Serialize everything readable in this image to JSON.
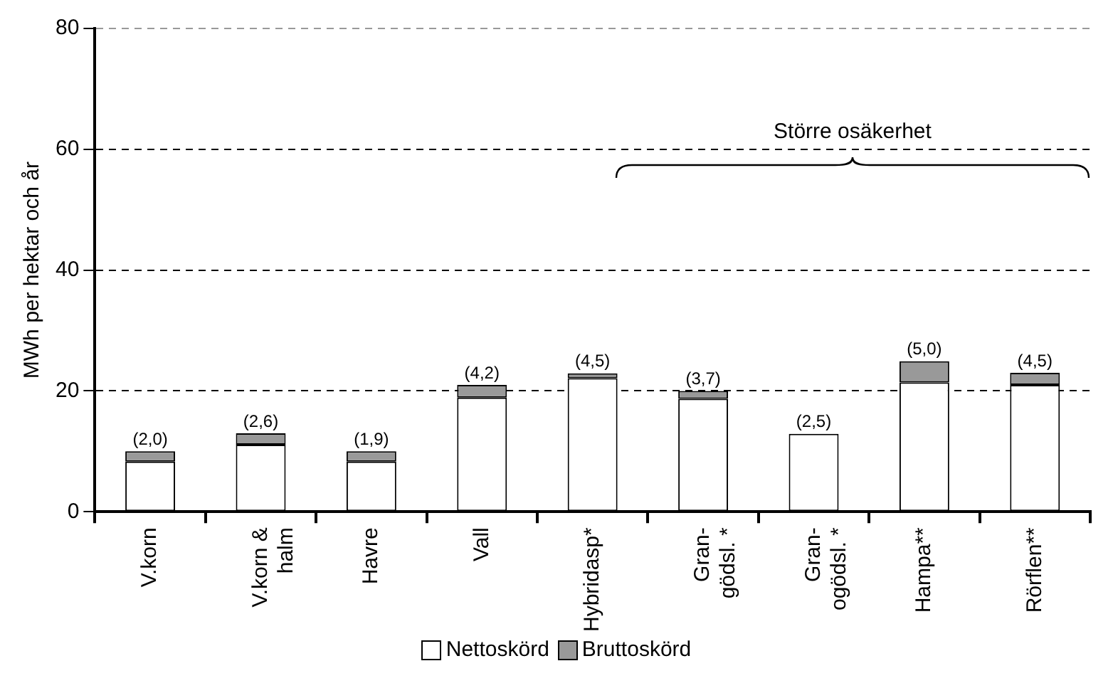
{
  "chart_data": {
    "type": "bar",
    "stacked": true,
    "ylabel": "MWh per hektar och år",
    "categories": [
      "V.korn",
      "V.korn &\nhalm",
      "Havre",
      "Vall",
      "Hybridasp*",
      "Gran-\ngödsl. *",
      "Gran-\nogödsl. *",
      "Hampa**",
      "Rörflen**"
    ],
    "series": [
      {
        "name": "Nettoskörd",
        "color": "#ffffff",
        "values": [
          8.3,
          11.1,
          8.3,
          18.9,
          22.1,
          18.7,
          12.9,
          21.4,
          21.0
        ]
      },
      {
        "name": "Bruttoskörd",
        "color": "#999999",
        "values": [
          1.7,
          1.9,
          1.7,
          2.1,
          0.8,
          1.3,
          0.0,
          3.5,
          2.0
        ]
      }
    ],
    "ylim": [
      0,
      80
    ],
    "yticks": [
      0,
      20,
      40,
      60,
      80
    ],
    "grid": "y",
    "legend": "bottom",
    "annotations": [
      {
        "text": "(2,0)",
        "x": "V.korn",
        "y": 10
      },
      {
        "text": "(2,6)",
        "x": "V.korn &\nhalm",
        "y": 13
      },
      {
        "text": "(1,9)",
        "x": "Havre",
        "y": 10
      },
      {
        "text": "(4,2)",
        "x": "Vall",
        "y": 21
      },
      {
        "text": "(4,5)",
        "x": "Hybridasp*",
        "y": 22.9
      },
      {
        "text": "(3,7)",
        "x": "Gran-\ngödsl. *",
        "y": 20
      },
      {
        "text": "(2,5)",
        "x": "Gran-\nogödsl. *",
        "y": 12.9
      },
      {
        "text": "(5,0)",
        "x": "Hampa**",
        "y": 24.9
      },
      {
        "text": "(4,5)",
        "x": "Rörflen**",
        "y": 23
      },
      "Större osäkerhet"
    ]
  }
}
